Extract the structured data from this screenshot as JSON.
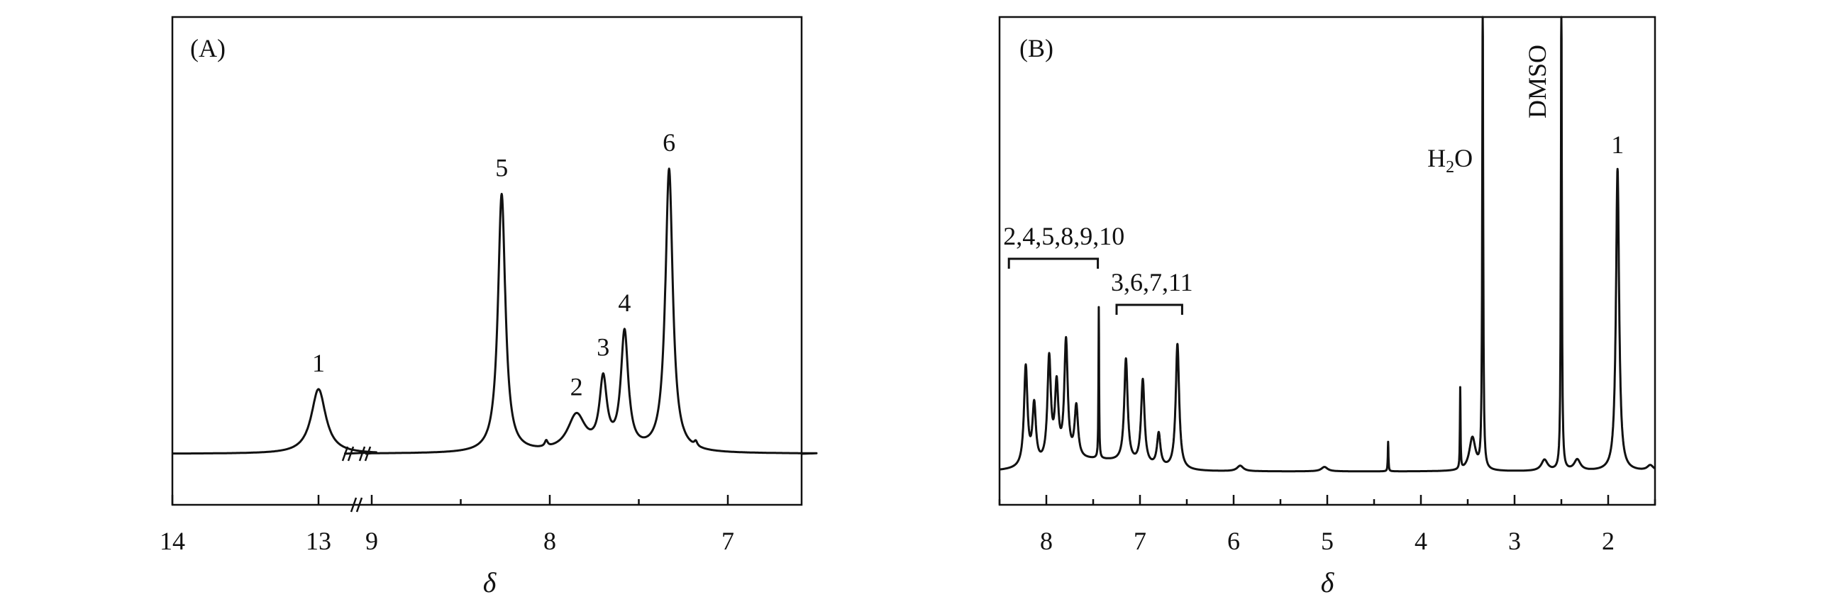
{
  "chart_data": [
    {
      "type": "line",
      "panel_label": "(A)",
      "xlabel": "δ",
      "xlim": [
        14,
        6.5
      ],
      "axis_break": {
        "left_value": 13,
        "right_value": 9,
        "mark": "//"
      },
      "x_ticks": [
        "14",
        "13",
        "9",
        "8",
        "7"
      ],
      "ylabel": "",
      "peaks": [
        {
          "label": "1",
          "delta": 13.0,
          "height": 0.16
        },
        {
          "label": "2",
          "delta": 7.85,
          "height": 0.09
        },
        {
          "label": "3",
          "delta": 7.7,
          "height": 0.17
        },
        {
          "label": "4",
          "delta": 7.58,
          "height": 0.29
        },
        {
          "label": "5",
          "delta": 8.27,
          "height": 0.64
        },
        {
          "label": "6",
          "delta": 7.33,
          "height": 0.7
        }
      ]
    },
    {
      "type": "line",
      "panel_label": "(B)",
      "xlabel": "δ",
      "xlim": [
        8.5,
        1.5
      ],
      "x_ticks": [
        "8",
        "7",
        "6",
        "5",
        "4",
        "3",
        "2"
      ],
      "ylabel": "",
      "group_labels": [
        {
          "label": "2,4,5,8,9,10",
          "from": 8.4,
          "to": 7.45
        },
        {
          "label": "3,6,7,11",
          "from": 7.25,
          "to": 6.55
        }
      ],
      "peak_labels": [
        {
          "label": "H2O",
          "delta": 3.34,
          "height": 1.3
        },
        {
          "label": "DMSO",
          "delta": 2.5,
          "height": 1.3
        },
        {
          "label": "1",
          "delta": 1.9,
          "height": 0.82
        }
      ],
      "peaks": [
        {
          "delta": 8.22,
          "height": 0.27
        },
        {
          "delta": 8.13,
          "height": 0.16
        },
        {
          "delta": 7.97,
          "height": 0.28
        },
        {
          "delta": 7.89,
          "height": 0.2
        },
        {
          "delta": 7.79,
          "height": 0.32
        },
        {
          "delta": 7.68,
          "height": 0.14
        },
        {
          "delta": 7.44,
          "height": 0.41
        },
        {
          "delta": 7.15,
          "height": 0.28
        },
        {
          "delta": 6.97,
          "height": 0.23
        },
        {
          "delta": 6.8,
          "height": 0.09
        },
        {
          "delta": 6.6,
          "height": 0.34
        },
        {
          "delta": 5.93,
          "height": 0.015
        },
        {
          "delta": 5.03,
          "height": 0.012
        },
        {
          "delta": 4.35,
          "height": 0.08
        },
        {
          "delta": 3.58,
          "height": 0.22
        },
        {
          "delta": 3.45,
          "height": 0.09
        },
        {
          "delta": 3.34,
          "height": 1.3
        },
        {
          "delta": 2.68,
          "height": 0.03
        },
        {
          "delta": 2.5,
          "height": 1.3
        },
        {
          "delta": 2.33,
          "height": 0.03
        },
        {
          "delta": 1.9,
          "height": 0.82
        },
        {
          "delta": 1.55,
          "height": 0.015
        }
      ]
    }
  ]
}
